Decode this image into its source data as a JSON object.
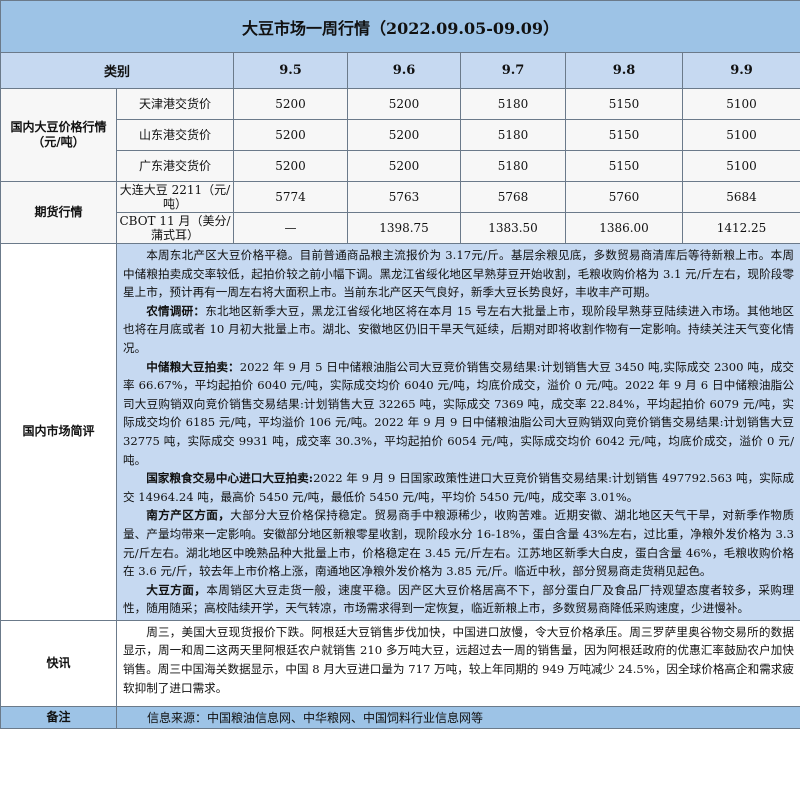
{
  "title": "大豆市场一周行情（2022.09.05-09.09）",
  "header": {
    "category": "类别",
    "dates": [
      "9.5",
      "9.6",
      "9.7",
      "9.8",
      "9.9"
    ]
  },
  "domestic": {
    "label": "国内大豆价格行情（元/吨）",
    "rows": [
      {
        "name": "天津港交货价",
        "values": [
          "5200",
          "5200",
          "5180",
          "5150",
          "5100"
        ]
      },
      {
        "name": "山东港交货价",
        "values": [
          "5200",
          "5200",
          "5180",
          "5150",
          "5100"
        ]
      },
      {
        "name": "广东港交货价",
        "values": [
          "5200",
          "5200",
          "5180",
          "5150",
          "5100"
        ]
      }
    ]
  },
  "futures": {
    "label": "期货行情",
    "rows": [
      {
        "name": "大连大豆 2211（元/吨）",
        "values": [
          "5774",
          "5763",
          "5768",
          "5760",
          "5684"
        ]
      },
      {
        "name": "CBOT 11 月（美分/蒲式耳）",
        "values": [
          "—",
          "1398.75",
          "1383.50",
          "1386.00",
          "1412.25"
        ]
      }
    ]
  },
  "commentary": {
    "label": "国内市场简评",
    "paragraphs": [
      {
        "lead": "",
        "text": "本周东北产区大豆价格平稳。目前普通商品粮主流报价为 3.17元/斤。基层余粮见底，多数贸易商清库后等待新粮上市。本周中储粮拍卖成交率较低，起拍价较之前小幅下调。黑龙江省绥化地区早熟芽豆开始收割，毛粮收购价格为 3.1 元/斤左右，现阶段零星上市，预计再有一周左右将大面积上市。当前东北产区天气良好，新季大豆长势良好，丰收丰产可期。"
      },
      {
        "lead": "农情调研：",
        "text": "东北地区新季大豆，黑龙江省绥化地区将在本月 15 号左右大批量上市，现阶段早熟芽豆陆续进入市场。其他地区也将在月底或者 10 月初大批量上市。湖北、安徽地区仍旧干旱天气延续，后期对即将收割作物有一定影响。持续关注天气变化情况。"
      },
      {
        "lead": "中储粮大豆拍卖：",
        "text": "2022 年 9 月 5 日中储粮油脂公司大豆竞价销售交易结果:计划销售大豆 3450 吨,实际成交 2300 吨，成交率 66.67%，平均起拍价 6040 元/吨，实际成交均价 6040 元/吨，均底价成交，溢价 0 元/吨。2022 年 9 月 6 日中储粮油脂公司大豆购销双向竞价销售交易结果:计划销售大豆 32265 吨，实际成交 7369 吨，成交率 22.84%，平均起拍价 6079 元/吨，实际成交均价 6185 元/吨，平均溢价 106 元/吨。2022 年 9 月 9 日中储粮油脂公司大豆购销双向竞价销售交易结果:计划销售大豆 32775 吨，实际成交 9931 吨，成交率 30.3%，平均起拍价 6054 元/吨，实际成交均价 6042 元/吨，均底价成交，溢价 0 元/吨。"
      },
      {
        "lead": "国家粮食交易中心进口大豆拍卖:",
        "text": "2022 年 9 月 9 日国家政策性进口大豆竞价销售交易结果:计划销售 497792.563 吨，实际成交 14964.24 吨，最高价 5450 元/吨，最低价 5450 元/吨，平均价 5450 元/吨，成交率 3.01%。"
      },
      {
        "lead": "南方产区方面，",
        "text": "大部分大豆价格保持稳定。贸易商手中粮源稀少，收购苦难。近期安徽、湖北地区天气干旱，对新季作物质量、产量均带来一定影响。安徽部分地区新粮零星收割，现阶段水分 16-18%，蛋白含量 43%左右，过比重，净粮外发价格为 3.3元/斤左右。湖北地区中晚熟品种大批量上市，价格稳定在 3.45 元/斤左右。江苏地区新季大白皮，蛋白含量 46%，毛粮收购价格在 3.6 元/斤，较去年上市价格上涨，南通地区净粮外发价格为 3.85 元/斤。临近中秋，部分贸易商走货稍见起色。"
      },
      {
        "lead": "大豆方面，",
        "text": "本周销区大豆走货一般，速度平稳。因产区大豆价格居高不下，部分蛋白厂及食品厂持观望态度者较多，采购理性，随用随采；高校陆续开学，天气转凉，市场需求得到一定恢复，临近新粮上市，多数贸易商降低采购速度，少进慢补。"
      }
    ]
  },
  "news": {
    "label": "快讯",
    "text": "周三，美国大豆现货报价下跌。阿根廷大豆销售步伐加快，中国进口放慢，令大豆价格承压。周三罗萨里奥谷物交易所的数据显示，周一和周二这两天里阿根廷农户就销售 210 多万吨大豆，远超过去一周的销售量，因为阿根廷政府的优惠汇率鼓励农户加快销售。周三中国海关数据显示，中国 8 月大豆进口量为 717 万吨，较上年同期的 949 万吨减少 24.5%，因全球价格高企和需求疲软抑制了进口需求。"
  },
  "note": {
    "label": "备注",
    "text": "信息来源：中国粮油信息网、中华粮网、中国饲料行业信息网等"
  }
}
